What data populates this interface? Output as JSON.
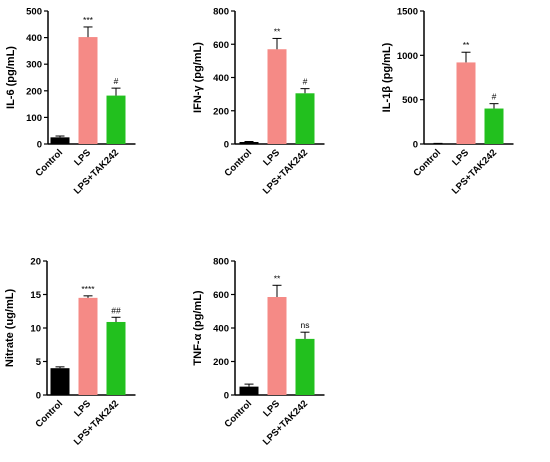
{
  "colors": {
    "Control": "#000000",
    "LPS": "#f58a86",
    "LPS+TAK242": "#22c01e",
    "axis": "#000000"
  },
  "chart_data": [
    {
      "type": "bar",
      "title": "",
      "xlabel": "",
      "ylabel": "IL-6 (pg/mL)",
      "ylim": [
        0,
        500
      ],
      "yticks": [
        "0",
        "100",
        "200",
        "300",
        "400",
        "500"
      ],
      "categories": [
        "Control",
        "LPS",
        "LPS+TAK242"
      ],
      "values": [
        25,
        402,
        182
      ],
      "errors": [
        5,
        38,
        28
      ],
      "significance": [
        "",
        "***",
        "#"
      ],
      "grid": false
    },
    {
      "type": "bar",
      "title": "",
      "xlabel": "",
      "ylabel": "IFN-γ (pg/mL)",
      "ylim": [
        0,
        800
      ],
      "yticks": [
        "0",
        "200",
        "400",
        "600",
        "800"
      ],
      "categories": [
        "Control",
        "LPS",
        "LPS+TAK242"
      ],
      "values": [
        12,
        570,
        305
      ],
      "errors": [
        3,
        65,
        28
      ],
      "significance": [
        "",
        "**",
        "#"
      ],
      "grid": false
    },
    {
      "type": "bar",
      "title": "",
      "xlabel": "",
      "ylabel": "IL-1β (pg/mL)",
      "ylim": [
        0,
        1500
      ],
      "yticks": [
        "0",
        "500",
        "1000",
        "1500"
      ],
      "categories": [
        "Control",
        "LPS",
        "LPS+TAK242"
      ],
      "values": [
        5,
        920,
        400
      ],
      "errors": [
        2,
        115,
        55
      ],
      "significance": [
        "",
        "**",
        "#"
      ],
      "grid": false
    },
    {
      "type": "bar",
      "title": "",
      "xlabel": "",
      "ylabel": "Nitrate (ug/mL)",
      "ylim": [
        0,
        20
      ],
      "yticks": [
        "0",
        "5",
        "10",
        "15",
        "20"
      ],
      "categories": [
        "Control",
        "LPS",
        "LPS+TAK242"
      ],
      "values": [
        4.0,
        14.5,
        10.9
      ],
      "errors": [
        0.2,
        0.3,
        0.7
      ],
      "significance": [
        "",
        "****",
        "##"
      ],
      "grid": false
    },
    {
      "type": "bar",
      "title": "",
      "xlabel": "",
      "ylabel": "TNF-α (pg/mL)",
      "ylim": [
        0,
        800
      ],
      "yticks": [
        "0",
        "200",
        "400",
        "600",
        "800"
      ],
      "categories": [
        "Control",
        "LPS",
        "LPS+TAK242"
      ],
      "values": [
        50,
        585,
        335
      ],
      "errors": [
        15,
        70,
        40
      ],
      "significance": [
        "",
        "**",
        "ns"
      ],
      "grid": false
    }
  ]
}
